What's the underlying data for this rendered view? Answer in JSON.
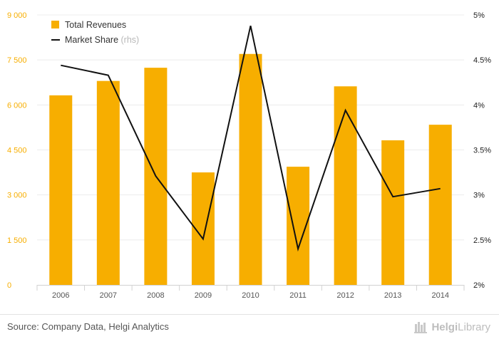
{
  "chart_data": {
    "type": "bar+line",
    "categories": [
      "2006",
      "2007",
      "2008",
      "2009",
      "2010",
      "2011",
      "2012",
      "2013",
      "2014"
    ],
    "series": [
      {
        "name": "Total Revenues",
        "axis": "left",
        "type": "bar",
        "color": "#f7ae00",
        "values": [
          6320,
          6800,
          7240,
          3750,
          7700,
          3940,
          6620,
          4820,
          5340
        ]
      },
      {
        "name": "Market Share",
        "axis": "right",
        "type": "line",
        "color": "#111111",
        "values": [
          4.44,
          4.33,
          3.21,
          2.51,
          4.88,
          2.4,
          3.94,
          2.98,
          3.07
        ]
      }
    ],
    "legend": [
      {
        "label": "Total Revenues",
        "suffix": ""
      },
      {
        "label": "Market Share",
        "suffix": "(rhs)"
      }
    ],
    "left_axis": {
      "ylim": [
        0,
        9000
      ],
      "ticks": [
        "0",
        "1 500",
        "3 000",
        "4 500",
        "6 000",
        "7 500",
        "9 000"
      ],
      "tick_values": [
        0,
        1500,
        3000,
        4500,
        6000,
        7500,
        9000
      ],
      "color": "#f7ae00"
    },
    "right_axis": {
      "ylim": [
        2,
        5
      ],
      "ticks": [
        "2%",
        "2.5%",
        "3%",
        "3.5%",
        "4%",
        "4.5%",
        "5%"
      ],
      "tick_values": [
        2,
        2.5,
        3,
        3.5,
        4,
        4.5,
        5
      ]
    },
    "legend_position": "top-left",
    "grid": true
  },
  "footer": {
    "source": "Source: Company Data, Helgi Analytics",
    "logo_prefix": "Helgi",
    "logo_suffix": "Library"
  }
}
